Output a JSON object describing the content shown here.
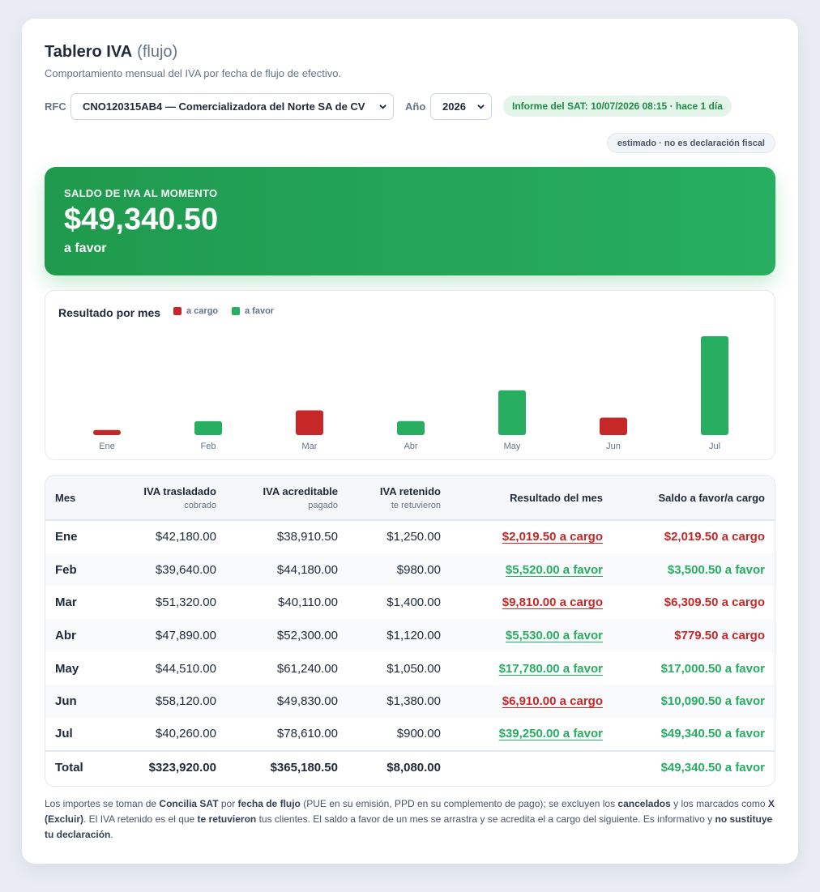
{
  "header": {
    "title": "Tablero IVA",
    "title_suffix": "(flujo)",
    "subtitle": "Comportamiento mensual del IVA por fecha de flujo de efectivo."
  },
  "controls": {
    "rfc_label": "RFC",
    "rfc_value": "CNO120315AB4 — Comercializadora del Norte SA de CV",
    "year_label": "Año",
    "year_value": "2026",
    "sat_report": "Informe del SAT: 10/07/2026 08:15 · hace 1 día",
    "estimate_note": "estimado · no es declaración fiscal"
  },
  "hero": {
    "label": "SALDO DE IVA AL MOMENTO",
    "amount": "$49,340.50",
    "state": "a favor"
  },
  "chart": {
    "title": "Resultado por mes",
    "legend_cargo": "a cargo",
    "legend_favor": "a favor"
  },
  "chart_data": {
    "type": "bar",
    "title": "Resultado por mes",
    "categories": [
      "Ene",
      "Feb",
      "Mar",
      "Abr",
      "May",
      "Jun",
      "Jul"
    ],
    "values": [
      2019.5,
      5520.0,
      9810.0,
      5530.0,
      17780.0,
      6910.0,
      39250.0
    ],
    "status": [
      "a cargo",
      "a favor",
      "a cargo",
      "a favor",
      "a favor",
      "a cargo",
      "a favor"
    ],
    "series": [
      {
        "name": "a cargo",
        "values": [
          2019.5,
          null,
          9810.0,
          null,
          null,
          6910.0,
          null
        ]
      },
      {
        "name": "a favor",
        "values": [
          null,
          5520.0,
          null,
          5530.0,
          17780.0,
          null,
          39250.0
        ]
      }
    ],
    "colors": {
      "a cargo": "#c62828",
      "a favor": "#27ae60"
    },
    "grid": false,
    "legend": "top-left",
    "ylim": [
      0,
      39250
    ]
  },
  "table": {
    "headers": {
      "mes": "Mes",
      "trasladado": "IVA trasladado",
      "trasladado_sub": "cobrado",
      "acreditable": "IVA acreditable",
      "acreditable_sub": "pagado",
      "retenido": "IVA retenido",
      "retenido_sub": "te retuvieron",
      "resultado": "Resultado del mes",
      "saldo": "Saldo a favor/a cargo"
    },
    "rows": [
      {
        "mes": "Ene",
        "trasladado": "$42,180.00",
        "acreditable": "$38,910.50",
        "retenido": "$1,250.00",
        "resultado": "$2,019.50 a cargo",
        "resultado_tipo": "cargo",
        "saldo": "$2,019.50 a cargo",
        "saldo_tipo": "cargo"
      },
      {
        "mes": "Feb",
        "trasladado": "$39,640.00",
        "acreditable": "$44,180.00",
        "retenido": "$980.00",
        "resultado": "$5,520.00 a favor",
        "resultado_tipo": "favor",
        "saldo": "$3,500.50 a favor",
        "saldo_tipo": "favor"
      },
      {
        "mes": "Mar",
        "trasladado": "$51,320.00",
        "acreditable": "$40,110.00",
        "retenido": "$1,400.00",
        "resultado": "$9,810.00 a cargo",
        "resultado_tipo": "cargo",
        "saldo": "$6,309.50 a cargo",
        "saldo_tipo": "cargo"
      },
      {
        "mes": "Abr",
        "trasladado": "$47,890.00",
        "acreditable": "$52,300.00",
        "retenido": "$1,120.00",
        "resultado": "$5,530.00 a favor",
        "resultado_tipo": "favor",
        "saldo": "$779.50 a cargo",
        "saldo_tipo": "cargo"
      },
      {
        "mes": "May",
        "trasladado": "$44,510.00",
        "acreditable": "$61,240.00",
        "retenido": "$1,050.00",
        "resultado": "$17,780.00 a favor",
        "resultado_tipo": "favor",
        "saldo": "$17,000.50 a favor",
        "saldo_tipo": "favor"
      },
      {
        "mes": "Jun",
        "trasladado": "$58,120.00",
        "acreditable": "$49,830.00",
        "retenido": "$1,380.00",
        "resultado": "$6,910.00 a cargo",
        "resultado_tipo": "cargo",
        "saldo": "$10,090.50 a favor",
        "saldo_tipo": "favor"
      },
      {
        "mes": "Jul",
        "trasladado": "$40,260.00",
        "acreditable": "$78,610.00",
        "retenido": "$900.00",
        "resultado": "$39,250.00 a favor",
        "resultado_tipo": "favor",
        "saldo": "$49,340.50 a favor",
        "saldo_tipo": "favor"
      }
    ],
    "total": {
      "label": "Total",
      "trasladado": "$323,920.00",
      "acreditable": "$365,180.50",
      "retenido": "$8,080.00",
      "saldo": "$49,340.50 a favor"
    }
  },
  "footnote": {
    "p1": "Los importes se toman de ",
    "b1": "Concilia SAT",
    "p2": " por ",
    "b2": "fecha de flujo",
    "p3": " (PUE en su emisión, PPD en su complemento de pago); se excluyen los ",
    "b3": "cancelados",
    "p4": " y los marcados como ",
    "b4": "X (Excluir)",
    "p5": ". El IVA retenido es el que ",
    "b5": "te retuvieron",
    "p6": " tus clientes. El saldo a favor de un mes se arrastra y se acredita el a cargo del siguiente. Es informativo y ",
    "b6": "no sustituye tu declaración",
    "p7": "."
  }
}
